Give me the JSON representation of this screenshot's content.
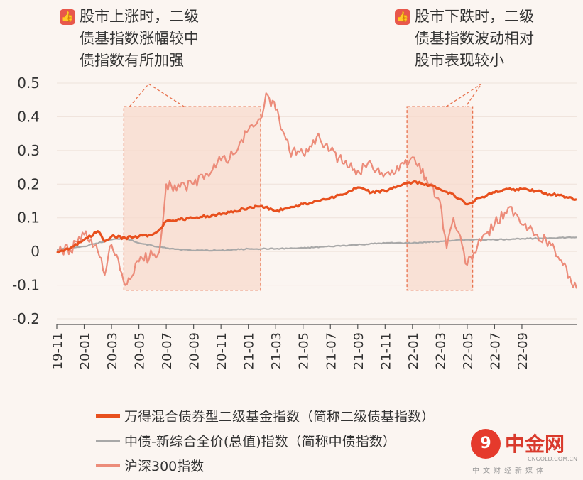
{
  "callouts": {
    "left": {
      "icon": "thumbs-up-icon",
      "lines": [
        "股市上涨时，二级",
        "债基指数涨幅较中",
        "债指数有所加强"
      ]
    },
    "right": {
      "icon": "thumbs-up-icon",
      "lines": [
        "股市下跌时，二级",
        "债基指数波动相对",
        "股市表现较小"
      ]
    }
  },
  "legend": {
    "items": [
      {
        "label": "万得混合债券型二级基金指数（简称二级债基指数）",
        "color": "#e8501e"
      },
      {
        "label": "中债-新综合全价(总值)指数（简称中债指数）",
        "color": "#a8a8a8"
      },
      {
        "label": "沪深300指数",
        "color": "#ec8c7a"
      }
    ]
  },
  "watermark": {
    "name": "中金网",
    "domain": "CNGOLD.COM.CN",
    "tagline": "中文财经新媒体",
    "icon": "cngold-logo-icon"
  },
  "chart_data": {
    "type": "line",
    "ylim": [
      -0.2,
      0.5
    ],
    "yticks": [
      {
        "v": 0.5,
        "label": "0.5"
      },
      {
        "v": 0.4,
        "label": "0.4"
      },
      {
        "v": 0.3,
        "label": "0.3"
      },
      {
        "v": 0.2,
        "label": "0.2"
      },
      {
        "v": 0.1,
        "label": "0.1"
      },
      {
        "v": 0,
        "label": "0"
      },
      {
        "v": -0.1,
        "label": "-0.1"
      },
      {
        "v": -0.2,
        "label": "-0.2"
      }
    ],
    "xlim": [
      0,
      38
    ],
    "xticks": [
      {
        "t": 0,
        "label": "19-11"
      },
      {
        "t": 2,
        "label": "20-01"
      },
      {
        "t": 4,
        "label": "20-03"
      },
      {
        "t": 6,
        "label": "20-05"
      },
      {
        "t": 8,
        "label": "20-07"
      },
      {
        "t": 10,
        "label": "20-09"
      },
      {
        "t": 12,
        "label": "20-11"
      },
      {
        "t": 14,
        "label": "21-01"
      },
      {
        "t": 16,
        "label": "21-03"
      },
      {
        "t": 18,
        "label": "21-05"
      },
      {
        "t": 20,
        "label": "21-07"
      },
      {
        "t": 22,
        "label": "21-09"
      },
      {
        "t": 24,
        "label": "21-11"
      },
      {
        "t": 26,
        "label": "22-01"
      },
      {
        "t": 28,
        "label": "22-03"
      },
      {
        "t": 30,
        "label": "22-05"
      },
      {
        "t": 32,
        "label": "22-07"
      },
      {
        "t": 34,
        "label": "22-09"
      }
    ],
    "shaded_ranges": [
      {
        "from": 4.9,
        "to": 14.9
      },
      {
        "from": 25.6,
        "to": 30.4
      }
    ],
    "series": [
      {
        "name": "万得混合债券型二级基金指数（简称二级债基指数）",
        "color": "#e8501e",
        "width": 3.2,
        "points": [
          [
            0,
            0
          ],
          [
            1,
            0.01
          ],
          [
            2,
            0.035
          ],
          [
            3,
            0.06
          ],
          [
            3.5,
            0.03
          ],
          [
            4,
            0.045
          ],
          [
            5,
            0.04
          ],
          [
            6,
            0.045
          ],
          [
            7,
            0.05
          ],
          [
            7.5,
            0.065
          ],
          [
            8,
            0.09
          ],
          [
            9,
            0.095
          ],
          [
            10,
            0.1
          ],
          [
            11,
            0.105
          ],
          [
            12,
            0.11
          ],
          [
            13,
            0.12
          ],
          [
            14,
            0.13
          ],
          [
            15,
            0.135
          ],
          [
            16,
            0.12
          ],
          [
            17,
            0.13
          ],
          [
            18,
            0.14
          ],
          [
            19,
            0.15
          ],
          [
            20,
            0.16
          ],
          [
            21,
            0.17
          ],
          [
            22,
            0.19
          ],
          [
            23,
            0.175
          ],
          [
            24,
            0.18
          ],
          [
            25,
            0.195
          ],
          [
            26,
            0.205
          ],
          [
            27,
            0.2
          ],
          [
            28,
            0.185
          ],
          [
            29,
            0.17
          ],
          [
            30,
            0.14
          ],
          [
            31,
            0.16
          ],
          [
            32,
            0.175
          ],
          [
            33,
            0.185
          ],
          [
            34,
            0.185
          ],
          [
            35,
            0.18
          ],
          [
            36,
            0.17
          ],
          [
            37,
            0.165
          ],
          [
            38,
            0.155
          ]
        ]
      },
      {
        "name": "中债-新综合全价(总值)指数（简称中债指数）",
        "color": "#a8a8a8",
        "width": 2.2,
        "points": [
          [
            0,
            0.005
          ],
          [
            2,
            0.015
          ],
          [
            4,
            0.035
          ],
          [
            5,
            0.04
          ],
          [
            6,
            0.025
          ],
          [
            8,
            0.01
          ],
          [
            10,
            0.003
          ],
          [
            12,
            0.003
          ],
          [
            14,
            0.008
          ],
          [
            16,
            0.008
          ],
          [
            18,
            0.01
          ],
          [
            20,
            0.015
          ],
          [
            22,
            0.02
          ],
          [
            24,
            0.025
          ],
          [
            26,
            0.025
          ],
          [
            28,
            0.03
          ],
          [
            30,
            0.035
          ],
          [
            32,
            0.035
          ],
          [
            34,
            0.038
          ],
          [
            36,
            0.04
          ],
          [
            38,
            0.042
          ]
        ]
      },
      {
        "name": "沪深300指数",
        "color": "#ec8c7a",
        "width": 2.2,
        "points": [
          [
            0,
            0
          ],
          [
            1,
            0.005
          ],
          [
            2,
            0.05
          ],
          [
            3,
            0.0
          ],
          [
            3.5,
            -0.07
          ],
          [
            4,
            0.02
          ],
          [
            5,
            -0.1
          ],
          [
            6,
            -0.03
          ],
          [
            7,
            -0.01
          ],
          [
            7.5,
            0.0
          ],
          [
            8,
            0.2
          ],
          [
            9,
            0.19
          ],
          [
            10,
            0.2
          ],
          [
            11,
            0.23
          ],
          [
            12,
            0.27
          ],
          [
            13,
            0.29
          ],
          [
            14,
            0.36
          ],
          [
            15,
            0.4
          ],
          [
            15.3,
            0.47
          ],
          [
            16,
            0.42
          ],
          [
            17,
            0.3
          ],
          [
            18,
            0.29
          ],
          [
            19,
            0.34
          ],
          [
            20,
            0.3
          ],
          [
            21,
            0.26
          ],
          [
            22,
            0.24
          ],
          [
            23,
            0.26
          ],
          [
            24,
            0.23
          ],
          [
            25,
            0.24
          ],
          [
            26,
            0.28
          ],
          [
            27,
            0.22
          ],
          [
            28,
            0.15
          ],
          [
            28.5,
            0.01
          ],
          [
            29,
            0.1
          ],
          [
            30,
            -0.04
          ],
          [
            31,
            0.03
          ],
          [
            32,
            0.08
          ],
          [
            33,
            0.13
          ],
          [
            34,
            0.08
          ],
          [
            35,
            0.05
          ],
          [
            36,
            0.03
          ],
          [
            37,
            -0.04
          ],
          [
            38,
            -0.11
          ]
        ]
      }
    ]
  }
}
